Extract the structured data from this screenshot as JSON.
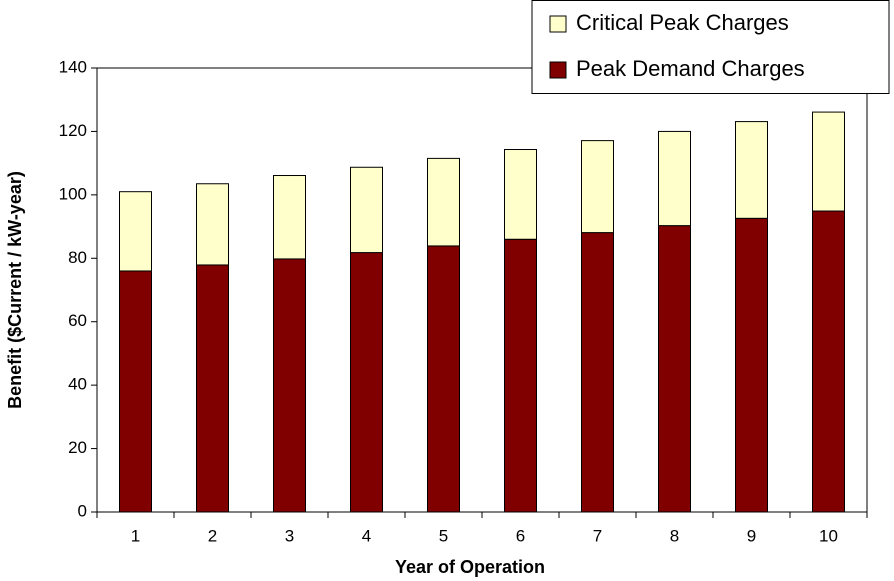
{
  "chart_data": {
    "type": "stacked_bar",
    "x_label": "Year of Operation",
    "y_label": "Benefit ($Current / kW-year)",
    "categories": [
      "1",
      "2",
      "3",
      "4",
      "5",
      "6",
      "7",
      "8",
      "9",
      "10"
    ],
    "series": [
      {
        "name": "Peak Demand Charges",
        "color": "#800000",
        "values": [
          76,
          77.9,
          79.8,
          81.8,
          83.9,
          86,
          88.1,
          90.3,
          92.6,
          94.9
        ]
      },
      {
        "name": "Critical Peak Charges",
        "color": "#ffffcc",
        "values": [
          25,
          25.6,
          26.3,
          26.9,
          27.6,
          28.3,
          29,
          29.7,
          30.5,
          31.2
        ]
      }
    ],
    "ylim": [
      0,
      140
    ],
    "yticks": [
      0,
      20,
      40,
      60,
      80,
      100,
      120,
      140
    ],
    "legend": "top-right"
  }
}
